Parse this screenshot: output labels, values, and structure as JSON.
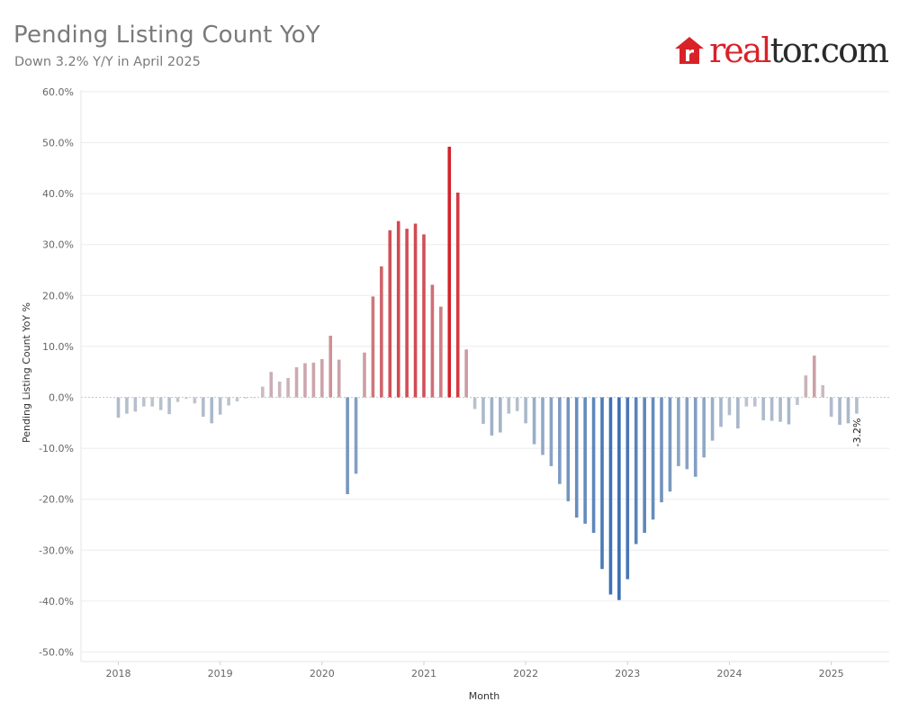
{
  "header": {
    "title": "Pending Listing Count YoY",
    "subtitle": "Down 3.2% Y/Y in April 2025"
  },
  "logo": {
    "brand_main": "real",
    "brand_tail": "tor.com",
    "colors": {
      "main": "#d92228",
      "tail": "#2b2b2b"
    }
  },
  "colors": {
    "positive_max": "#d3222a",
    "negative_max": "#3a6fb4",
    "neutral": "#c9ccd1",
    "grid": "#ececec",
    "zero_line": "#c8c8c8",
    "axis_text": "#666666"
  },
  "chart_data": {
    "type": "bar",
    "title": "Pending Listing Count YoY",
    "subtitle": "Down 3.2% Y/Y in April 2025",
    "xlabel": "Month",
    "ylabel": "Pending Listing Count YoY %",
    "ylim": [
      -50,
      60
    ],
    "yticks": [
      60,
      50,
      40,
      30,
      20,
      10,
      0,
      -10,
      -20,
      -30,
      -40,
      -50
    ],
    "ytick_labels": [
      "60.0%",
      "50.0%",
      "40.0%",
      "30.0%",
      "20.0%",
      "10.0%",
      "0.0%",
      "-10.0%",
      "-20.0%",
      "-30.0%",
      "-40.0%",
      "-50.0%"
    ],
    "xticks": [
      "2018",
      "2019",
      "2020",
      "2021",
      "2022",
      "2023",
      "2024",
      "2025"
    ],
    "first_period": "2018-01",
    "values": [
      -4.0,
      -3.2,
      -2.8,
      -1.8,
      -1.8,
      -2.5,
      -3.3,
      -0.9,
      -0.3,
      -1.2,
      -3.8,
      -5.1,
      -3.4,
      -1.6,
      -0.8,
      -0.2,
      -0.1,
      2.1,
      5.0,
      3.1,
      3.8,
      5.9,
      6.7,
      6.8,
      7.5,
      12.1,
      7.4,
      -19.0,
      -15.0,
      8.8,
      19.8,
      25.7,
      32.8,
      34.6,
      33.1,
      34.1,
      32.0,
      22.1,
      17.8,
      49.2,
      40.2,
      9.4,
      -2.3,
      -5.2,
      -7.5,
      -6.9,
      -3.2,
      -2.7,
      -5.1,
      -9.2,
      -11.3,
      -13.5,
      -17.0,
      -20.4,
      -23.6,
      -24.8,
      -26.6,
      -33.7,
      -38.7,
      -39.8,
      -35.7,
      -28.8,
      -26.6,
      -24.0,
      -20.6,
      -18.5,
      -13.5,
      -14.1,
      -15.6,
      -11.8,
      -8.5,
      -5.8,
      -3.5,
      -6.1,
      -1.8,
      -1.8,
      -4.5,
      -4.6,
      -4.8,
      -5.3,
      -1.5,
      4.3,
      8.2,
      2.4,
      -3.8,
      -5.4,
      -5.1,
      -3.2
    ],
    "annotations": [
      {
        "period": "2025-04",
        "value": -3.2,
        "text": "-3.2%"
      }
    ],
    "grid": true,
    "legend": "none"
  }
}
